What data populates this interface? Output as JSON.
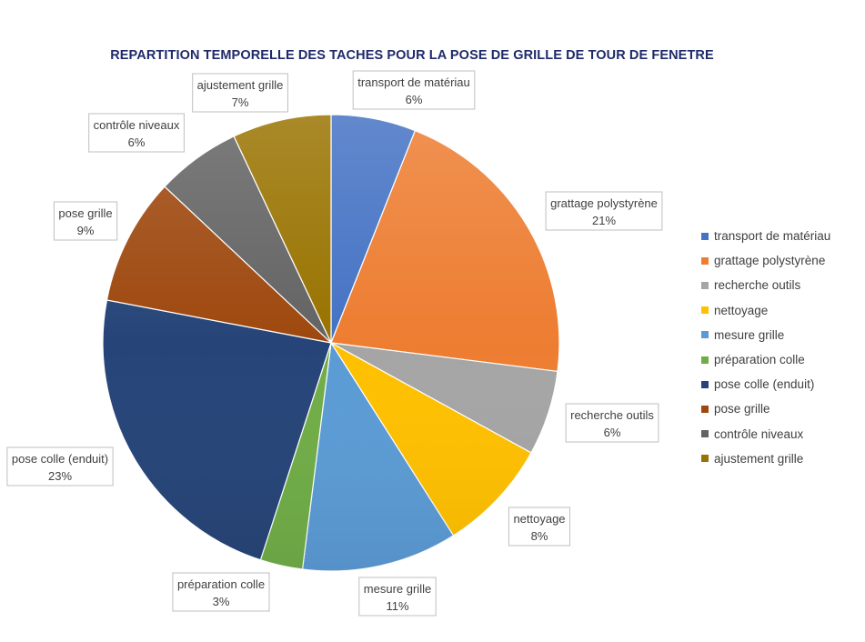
{
  "chart_data": {
    "type": "pie",
    "title": "REPARTITION TEMPORELLE DES TACHES POUR LA POSE DE GRILLE DE TOUR DE FENETRE",
    "categories": [
      "transport de matériau",
      "grattage polystyrène",
      "recherche outils",
      "nettoyage",
      "mesure grille",
      "préparation colle",
      "pose colle (enduit)",
      "pose grille",
      "contrôle niveaux",
      "ajustement grille"
    ],
    "values": [
      6,
      21,
      6,
      8,
      11,
      3,
      23,
      9,
      6,
      7
    ],
    "data_labels": [
      "6%",
      "21%",
      "6%",
      "8%",
      "11%",
      "3%",
      "23%",
      "9%",
      "6%",
      "7%"
    ],
    "colors": [
      "#4472C4",
      "#ED7D31",
      "#A5A5A5",
      "#FFC000",
      "#5B9BD5",
      "#70AD47",
      "#264478",
      "#9E480E",
      "#636363",
      "#997300"
    ],
    "start_angle": "12 o'clock",
    "direction": "clockwise",
    "legend_position": "right"
  }
}
